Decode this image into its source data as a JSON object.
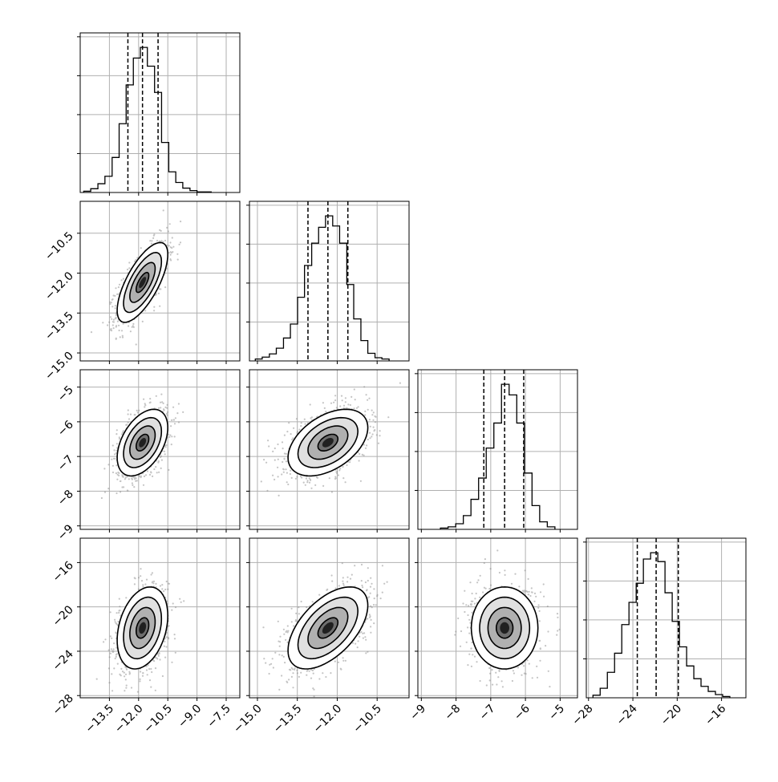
{
  "chart_data": {
    "type": "corner",
    "variables": [
      {
        "lim": [
          -15.0,
          -6.8
        ],
        "ticks": [
          -13.5,
          -12.0,
          -10.5,
          -9.0,
          -7.5
        ],
        "tick_labels": [
          "−13.5",
          "−12.0",
          "−10.5",
          "−9.0",
          "−7.5"
        ],
        "quantiles": [
          -12.55,
          -11.8,
          -11.0
        ],
        "hist": [
          {
            "bin": [
              -14.82,
              -14.46
            ],
            "count": 2
          },
          {
            "bin": [
              -14.46,
              -14.09
            ],
            "count": 6
          },
          {
            "bin": [
              -14.09,
              -13.73
            ],
            "count": 14
          },
          {
            "bin": [
              -13.73,
              -13.36
            ],
            "count": 26
          },
          {
            "bin": [
              -13.36,
              -13.0
            ],
            "count": 56
          },
          {
            "bin": [
              -13.0,
              -12.64
            ],
            "count": 110
          },
          {
            "bin": [
              -12.64,
              -12.27
            ],
            "count": 172
          },
          {
            "bin": [
              -12.27,
              -11.91
            ],
            "count": 215
          },
          {
            "bin": [
              -11.91,
              -11.55
            ],
            "count": 232
          },
          {
            "bin": [
              -11.55,
              -11.18
            ],
            "count": 202
          },
          {
            "bin": [
              -11.18,
              -10.82
            ],
            "count": 160
          },
          {
            "bin": [
              -10.82,
              -10.45
            ],
            "count": 80
          },
          {
            "bin": [
              -10.45,
              -10.09
            ],
            "count": 33
          },
          {
            "bin": [
              -10.09,
              -9.73
            ],
            "count": 16
          },
          {
            "bin": [
              -9.73,
              -9.36
            ],
            "count": 7
          },
          {
            "bin": [
              -9.36,
              -9.0
            ],
            "count": 3
          },
          {
            "bin": [
              -9.0,
              -8.64
            ],
            "count": 1
          },
          {
            "bin": [
              -8.64,
              -8.27
            ],
            "count": 1
          }
        ]
      },
      {
        "lim": [
          -15.3,
          -9.3
        ],
        "ticks": [
          -15.0,
          -13.5,
          -12.0,
          -10.5
        ],
        "tick_labels": [
          "−15.0",
          "−13.5",
          "−12.0",
          "−10.5"
        ],
        "quantiles": [
          -13.1,
          -12.35,
          -11.6
        ],
        "hist": [
          {
            "bin": [
              -15.08,
              -14.82
            ],
            "count": 3
          },
          {
            "bin": [
              -14.82,
              -14.55
            ],
            "count": 6
          },
          {
            "bin": [
              -14.55,
              -14.29
            ],
            "count": 11
          },
          {
            "bin": [
              -14.29,
              -14.02
            ],
            "count": 20
          },
          {
            "bin": [
              -14.02,
              -13.76
            ],
            "count": 36
          },
          {
            "bin": [
              -13.76,
              -13.49
            ],
            "count": 58
          },
          {
            "bin": [
              -13.49,
              -13.23
            ],
            "count": 100
          },
          {
            "bin": [
              -13.23,
              -12.96
            ],
            "count": 150
          },
          {
            "bin": [
              -12.96,
              -12.7
            ],
            "count": 185
          },
          {
            "bin": [
              -12.7,
              -12.44
            ],
            "count": 210
          },
          {
            "bin": [
              -12.44,
              -12.17
            ],
            "count": 228
          },
          {
            "bin": [
              -12.17,
              -11.91
            ],
            "count": 212
          },
          {
            "bin": [
              -11.91,
              -11.64
            ],
            "count": 185
          },
          {
            "bin": [
              -11.64,
              -11.38
            ],
            "count": 120
          },
          {
            "bin": [
              -11.38,
              -11.11
            ],
            "count": 66
          },
          {
            "bin": [
              -11.11,
              -10.85
            ],
            "count": 32
          },
          {
            "bin": [
              -10.85,
              -10.58
            ],
            "count": 12
          },
          {
            "bin": [
              -10.58,
              -10.32
            ],
            "count": 5
          },
          {
            "bin": [
              -10.32,
              -10.05
            ],
            "count": 3
          }
        ]
      },
      {
        "lim": [
          -9.1,
          -4.5
        ],
        "ticks": [
          -9,
          -8,
          -7,
          -6,
          -5
        ],
        "tick_labels": [
          "−9",
          "−8",
          "−7",
          "−6",
          "−5"
        ],
        "quantiles": [
          -7.2,
          -6.6,
          -6.05
        ],
        "hist": [
          {
            "bin": [
              -8.45,
              -8.23
            ],
            "count": 2
          },
          {
            "bin": [
              -8.23,
              -8.01
            ],
            "count": 4
          },
          {
            "bin": [
              -8.01,
              -7.79
            ],
            "count": 9
          },
          {
            "bin": [
              -7.79,
              -7.57
            ],
            "count": 22
          },
          {
            "bin": [
              -7.57,
              -7.35
            ],
            "count": 48
          },
          {
            "bin": [
              -7.35,
              -7.13
            ],
            "count": 82
          },
          {
            "bin": [
              -7.13,
              -6.91
            ],
            "count": 130
          },
          {
            "bin": [
              -6.91,
              -6.69
            ],
            "count": 170
          },
          {
            "bin": [
              -6.69,
              -6.47
            ],
            "count": 232
          },
          {
            "bin": [
              -6.47,
              -6.25
            ],
            "count": 215
          },
          {
            "bin": [
              -6.25,
              -6.03
            ],
            "count": 170
          },
          {
            "bin": [
              -6.03,
              -5.81
            ],
            "count": 90
          },
          {
            "bin": [
              -5.81,
              -5.59
            ],
            "count": 38
          },
          {
            "bin": [
              -5.59,
              -5.37
            ],
            "count": 12
          },
          {
            "bin": [
              -5.37,
              -5.15
            ],
            "count": 4
          }
        ]
      },
      {
        "lim": [
          -28.2,
          -13.8
        ],
        "ticks": [
          -28,
          -24,
          -20,
          -16
        ],
        "tick_labels": [
          "−28",
          "−24",
          "−20",
          "−16"
        ],
        "quantiles": [
          -23.6,
          -21.9,
          -19.9
        ],
        "hist": [
          {
            "bin": [
              -27.6,
              -26.95
            ],
            "count": 4
          },
          {
            "bin": [
              -26.95,
              -26.3
            ],
            "count": 15
          },
          {
            "bin": [
              -26.3,
              -25.65
            ],
            "count": 40
          },
          {
            "bin": [
              -25.65,
              -25.0
            ],
            "count": 70
          },
          {
            "bin": [
              -25.0,
              -24.35
            ],
            "count": 115
          },
          {
            "bin": [
              -24.35,
              -23.7
            ],
            "count": 150
          },
          {
            "bin": [
              -23.7,
              -23.05
            ],
            "count": 180
          },
          {
            "bin": [
              -23.05,
              -22.4
            ],
            "count": 218
          },
          {
            "bin": [
              -22.4,
              -21.75
            ],
            "count": 228
          },
          {
            "bin": [
              -21.75,
              -21.1
            ],
            "count": 214
          },
          {
            "bin": [
              -21.1,
              -20.45
            ],
            "count": 165
          },
          {
            "bin": [
              -20.45,
              -19.8
            ],
            "count": 120
          },
          {
            "bin": [
              -19.8,
              -19.15
            ],
            "count": 80
          },
          {
            "bin": [
              -19.15,
              -18.5
            ],
            "count": 50
          },
          {
            "bin": [
              -18.5,
              -17.85
            ],
            "count": 30
          },
          {
            "bin": [
              -17.85,
              -17.2
            ],
            "count": 18
          },
          {
            "bin": [
              -17.2,
              -16.55
            ],
            "count": 10
          },
          {
            "bin": [
              -16.55,
              -15.9
            ],
            "count": 5
          },
          {
            "bin": [
              -15.9,
              -15.25
            ],
            "count": 2
          }
        ]
      }
    ],
    "pairs": [
      {
        "x": 0,
        "y": 1,
        "mean": [
          -11.8,
          -12.35
        ],
        "sd": [
          0.65,
          0.75
        ],
        "rho": 0.7
      },
      {
        "x": 0,
        "y": 2,
        "mean": [
          -11.8,
          -6.6
        ],
        "sd": [
          0.65,
          0.48
        ],
        "rho": 0.45
      },
      {
        "x": 1,
        "y": 2,
        "mean": [
          -12.35,
          -6.6
        ],
        "sd": [
          0.75,
          0.48
        ],
        "rho": 0.45
      },
      {
        "x": 0,
        "y": 3,
        "mean": [
          -11.8,
          -21.9
        ],
        "sd": [
          0.65,
          1.85
        ],
        "rho": 0.3
      },
      {
        "x": 1,
        "y": 3,
        "mean": [
          -12.35,
          -21.9
        ],
        "sd": [
          0.75,
          1.85
        ],
        "rho": 0.55
      },
      {
        "x": 2,
        "y": 3,
        "mean": [
          -6.6,
          -21.9
        ],
        "sd": [
          0.48,
          1.85
        ],
        "rho": 0.0
      }
    ],
    "contour_levels": [
      0.5,
      1.0,
      1.5,
      2.0
    ],
    "grid": true,
    "colors": {
      "data": "#000000",
      "points": "#8a8a8a",
      "grid": "#b0b0b0",
      "frame": "#000000"
    }
  }
}
